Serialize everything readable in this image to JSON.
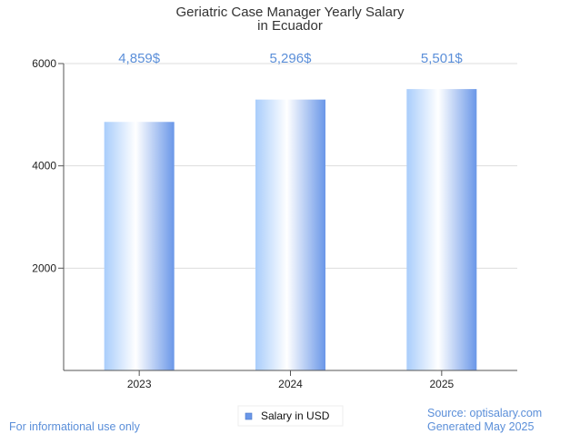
{
  "chart_data": {
    "type": "bar",
    "title": [
      "Geriatric Case Manager Yearly Salary",
      "in Ecuador"
    ],
    "categories": [
      "2023",
      "2024",
      "2025"
    ],
    "series": [
      {
        "name": "Salary in USD",
        "values": [
          4859,
          5296,
          5501
        ],
        "labels": [
          "4,859$",
          "5,296$",
          "5,501$"
        ]
      }
    ],
    "ylim": [
      0,
      6000
    ],
    "yticks": [
      2000,
      4000,
      6000
    ],
    "grid": true,
    "legend_position": "bottom",
    "colors": {
      "bar_edge": "#6a97e8",
      "bar_light": "#ffffff",
      "bar_mid": "#a9cdfb",
      "label": "#5b8fd9",
      "grid": "#dddddd",
      "axis": "#555555"
    }
  },
  "footer": {
    "disclaimer": "For informational use only",
    "source": "Source: optisalary.com",
    "generated": "Generated May 2025"
  }
}
